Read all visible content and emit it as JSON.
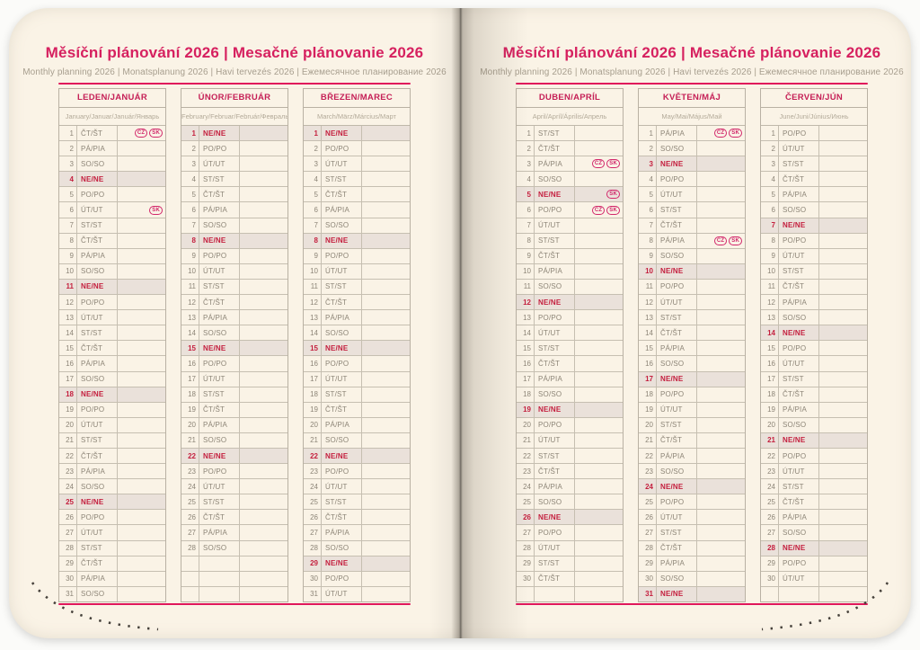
{
  "colors": {
    "accent_magenta": "#d6205f",
    "rule_red": "#e0175b",
    "month_header": "#c51f56",
    "sunday_text": "#c41f3e",
    "sunday_bg": "#eae1da",
    "day_text": "#8d8577",
    "page_cream": "#faf3e6",
    "grid_line": "#c6bfb1",
    "badge_outline": "#d2286b"
  },
  "pages": [
    {
      "title": "Měsíční plánování 2026 | Mesačné plánovanie 2026",
      "subtitle": "Monthly planning 2026 | Monatsplanung 2026 | Havi tervezés 2026 | Ежемесячное планирование 2026",
      "months": [
        {
          "name": "LEDEN/JANUÁR",
          "languages": "January/Januar/Január/Январь",
          "rows": [
            [
              "1",
              "ČT/ŠT",
              [
                "CZ",
                "SK"
              ]
            ],
            [
              "2",
              "PÁ/PIA"
            ],
            [
              "3",
              "SO/SO"
            ],
            [
              "4",
              "NE/NE"
            ],
            [
              "5",
              "PO/PO"
            ],
            [
              "6",
              "ÚT/UT",
              [
                "SK"
              ]
            ],
            [
              "7",
              "ST/ST"
            ],
            [
              "8",
              "ČT/ŠT"
            ],
            [
              "9",
              "PÁ/PIA"
            ],
            [
              "10",
              "SO/SO"
            ],
            [
              "11",
              "NE/NE"
            ],
            [
              "12",
              "PO/PO"
            ],
            [
              "13",
              "ÚT/UT"
            ],
            [
              "14",
              "ST/ST"
            ],
            [
              "15",
              "ČT/ŠT"
            ],
            [
              "16",
              "PÁ/PIA"
            ],
            [
              "17",
              "SO/SO"
            ],
            [
              "18",
              "NE/NE"
            ],
            [
              "19",
              "PO/PO"
            ],
            [
              "20",
              "ÚT/UT"
            ],
            [
              "21",
              "ST/ST"
            ],
            [
              "22",
              "ČT/ŠT"
            ],
            [
              "23",
              "PÁ/PIA"
            ],
            [
              "24",
              "SO/SO"
            ],
            [
              "25",
              "NE/NE"
            ],
            [
              "26",
              "PO/PO"
            ],
            [
              "27",
              "ÚT/UT"
            ],
            [
              "28",
              "ST/ST"
            ],
            [
              "29",
              "ČT/ŠT"
            ],
            [
              "30",
              "PÁ/PIA"
            ],
            [
              "31",
              "SO/SO"
            ]
          ]
        },
        {
          "name": "ÚNOR/FEBRUÁR",
          "languages": "February/Februar/Február/Февраль",
          "rows": [
            [
              "1",
              "NE/NE"
            ],
            [
              "2",
              "PO/PO"
            ],
            [
              "3",
              "ÚT/UT"
            ],
            [
              "4",
              "ST/ST"
            ],
            [
              "5",
              "ČT/ŠT"
            ],
            [
              "6",
              "PÁ/PIA"
            ],
            [
              "7",
              "SO/SO"
            ],
            [
              "8",
              "NE/NE"
            ],
            [
              "9",
              "PO/PO"
            ],
            [
              "10",
              "ÚT/UT"
            ],
            [
              "11",
              "ST/ST"
            ],
            [
              "12",
              "ČT/ŠT"
            ],
            [
              "13",
              "PÁ/PIA"
            ],
            [
              "14",
              "SO/SO"
            ],
            [
              "15",
              "NE/NE"
            ],
            [
              "16",
              "PO/PO"
            ],
            [
              "17",
              "ÚT/UT"
            ],
            [
              "18",
              "ST/ST"
            ],
            [
              "19",
              "ČT/ŠT"
            ],
            [
              "20",
              "PÁ/PIA"
            ],
            [
              "21",
              "SO/SO"
            ],
            [
              "22",
              "NE/NE"
            ],
            [
              "23",
              "PO/PO"
            ],
            [
              "24",
              "ÚT/UT"
            ],
            [
              "25",
              "ST/ST"
            ],
            [
              "26",
              "ČT/ŠT"
            ],
            [
              "27",
              "PÁ/PIA"
            ],
            [
              "28",
              "SO/SO"
            ],
            [
              "",
              ""
            ],
            [
              "",
              ""
            ],
            [
              "",
              ""
            ]
          ]
        },
        {
          "name": "BŘEZEN/MAREC",
          "languages": "March/März/Március/Март",
          "rows": [
            [
              "1",
              "NE/NE"
            ],
            [
              "2",
              "PO/PO"
            ],
            [
              "3",
              "ÚT/UT"
            ],
            [
              "4",
              "ST/ST"
            ],
            [
              "5",
              "ČT/ŠT"
            ],
            [
              "6",
              "PÁ/PIA"
            ],
            [
              "7",
              "SO/SO"
            ],
            [
              "8",
              "NE/NE"
            ],
            [
              "9",
              "PO/PO"
            ],
            [
              "10",
              "ÚT/UT"
            ],
            [
              "11",
              "ST/ST"
            ],
            [
              "12",
              "ČT/ŠT"
            ],
            [
              "13",
              "PÁ/PIA"
            ],
            [
              "14",
              "SO/SO"
            ],
            [
              "15",
              "NE/NE"
            ],
            [
              "16",
              "PO/PO"
            ],
            [
              "17",
              "ÚT/UT"
            ],
            [
              "18",
              "ST/ST"
            ],
            [
              "19",
              "ČT/ŠT"
            ],
            [
              "20",
              "PÁ/PIA"
            ],
            [
              "21",
              "SO/SO"
            ],
            [
              "22",
              "NE/NE"
            ],
            [
              "23",
              "PO/PO"
            ],
            [
              "24",
              "ÚT/UT"
            ],
            [
              "25",
              "ST/ST"
            ],
            [
              "26",
              "ČT/ŠT"
            ],
            [
              "27",
              "PÁ/PIA"
            ],
            [
              "28",
              "SO/SO"
            ],
            [
              "29",
              "NE/NE"
            ],
            [
              "30",
              "PO/PO"
            ],
            [
              "31",
              "ÚT/UT"
            ]
          ]
        }
      ]
    },
    {
      "title": "Měsíční plánování 2026 | Mesačné plánovanie 2026",
      "subtitle": "Monthly planning 2026 | Monatsplanung 2026 | Havi tervezés 2026 | Ежемесячное планирование 2026",
      "months": [
        {
          "name": "DUBEN/APRÍL",
          "languages": "April/Apríl/Április/Апрель",
          "rows": [
            [
              "1",
              "ST/ST"
            ],
            [
              "2",
              "ČT/ŠT"
            ],
            [
              "3",
              "PÁ/PIA",
              [
                "CZ",
                "SK"
              ]
            ],
            [
              "4",
              "SO/SO"
            ],
            [
              "5",
              "NE/NE",
              [
                "SK"
              ]
            ],
            [
              "6",
              "PO/PO",
              [
                "CZ",
                "SK"
              ]
            ],
            [
              "7",
              "ÚT/UT"
            ],
            [
              "8",
              "ST/ST"
            ],
            [
              "9",
              "ČT/ŠT"
            ],
            [
              "10",
              "PÁ/PIA"
            ],
            [
              "11",
              "SO/SO"
            ],
            [
              "12",
              "NE/NE"
            ],
            [
              "13",
              "PO/PO"
            ],
            [
              "14",
              "ÚT/UT"
            ],
            [
              "15",
              "ST/ST"
            ],
            [
              "16",
              "ČT/ŠT"
            ],
            [
              "17",
              "PÁ/PIA"
            ],
            [
              "18",
              "SO/SO"
            ],
            [
              "19",
              "NE/NE"
            ],
            [
              "20",
              "PO/PO"
            ],
            [
              "21",
              "ÚT/UT"
            ],
            [
              "22",
              "ST/ST"
            ],
            [
              "23",
              "ČT/ŠT"
            ],
            [
              "24",
              "PÁ/PIA"
            ],
            [
              "25",
              "SO/SO"
            ],
            [
              "26",
              "NE/NE"
            ],
            [
              "27",
              "PO/PO"
            ],
            [
              "28",
              "ÚT/UT"
            ],
            [
              "29",
              "ST/ST"
            ],
            [
              "30",
              "ČT/ŠT"
            ],
            [
              "",
              ""
            ]
          ]
        },
        {
          "name": "KVĚTEN/MÁJ",
          "languages": "May/Mai/Május/Май",
          "rows": [
            [
              "1",
              "PÁ/PIA",
              [
                "CZ",
                "SK"
              ]
            ],
            [
              "2",
              "SO/SO"
            ],
            [
              "3",
              "NE/NE"
            ],
            [
              "4",
              "PO/PO"
            ],
            [
              "5",
              "ÚT/UT"
            ],
            [
              "6",
              "ST/ST"
            ],
            [
              "7",
              "ČT/ŠT"
            ],
            [
              "8",
              "PÁ/PIA",
              [
                "CZ",
                "SK"
              ]
            ],
            [
              "9",
              "SO/SO"
            ],
            [
              "10",
              "NE/NE"
            ],
            [
              "11",
              "PO/PO"
            ],
            [
              "12",
              "ÚT/UT"
            ],
            [
              "13",
              "ST/ST"
            ],
            [
              "14",
              "ČT/ŠT"
            ],
            [
              "15",
              "PÁ/PIA"
            ],
            [
              "16",
              "SO/SO"
            ],
            [
              "17",
              "NE/NE"
            ],
            [
              "18",
              "PO/PO"
            ],
            [
              "19",
              "ÚT/UT"
            ],
            [
              "20",
              "ST/ST"
            ],
            [
              "21",
              "ČT/ŠT"
            ],
            [
              "22",
              "PÁ/PIA"
            ],
            [
              "23",
              "SO/SO"
            ],
            [
              "24",
              "NE/NE"
            ],
            [
              "25",
              "PO/PO"
            ],
            [
              "26",
              "ÚT/UT"
            ],
            [
              "27",
              "ST/ST"
            ],
            [
              "28",
              "ČT/ŠT"
            ],
            [
              "29",
              "PÁ/PIA"
            ],
            [
              "30",
              "SO/SO"
            ],
            [
              "31",
              "NE/NE"
            ]
          ]
        },
        {
          "name": "ČERVEN/JÚN",
          "languages": "June/Juni/Június/Июнь",
          "rows": [
            [
              "1",
              "PO/PO"
            ],
            [
              "2",
              "ÚT/UT"
            ],
            [
              "3",
              "ST/ST"
            ],
            [
              "4",
              "ČT/ŠT"
            ],
            [
              "5",
              "PÁ/PIA"
            ],
            [
              "6",
              "SO/SO"
            ],
            [
              "7",
              "NE/NE"
            ],
            [
              "8",
              "PO/PO"
            ],
            [
              "9",
              "ÚT/UT"
            ],
            [
              "10",
              "ST/ST"
            ],
            [
              "11",
              "ČT/ŠT"
            ],
            [
              "12",
              "PÁ/PIA"
            ],
            [
              "13",
              "SO/SO"
            ],
            [
              "14",
              "NE/NE"
            ],
            [
              "15",
              "PO/PO"
            ],
            [
              "16",
              "ÚT/UT"
            ],
            [
              "17",
              "ST/ST"
            ],
            [
              "18",
              "ČT/ŠT"
            ],
            [
              "19",
              "PÁ/PIA"
            ],
            [
              "20",
              "SO/SO"
            ],
            [
              "21",
              "NE/NE"
            ],
            [
              "22",
              "PO/PO"
            ],
            [
              "23",
              "ÚT/UT"
            ],
            [
              "24",
              "ST/ST"
            ],
            [
              "25",
              "ČT/ŠT"
            ],
            [
              "26",
              "PÁ/PIA"
            ],
            [
              "27",
              "SO/SO"
            ],
            [
              "28",
              "NE/NE"
            ],
            [
              "29",
              "PO/PO"
            ],
            [
              "30",
              "ÚT/UT"
            ],
            [
              "",
              ""
            ]
          ]
        }
      ]
    }
  ]
}
